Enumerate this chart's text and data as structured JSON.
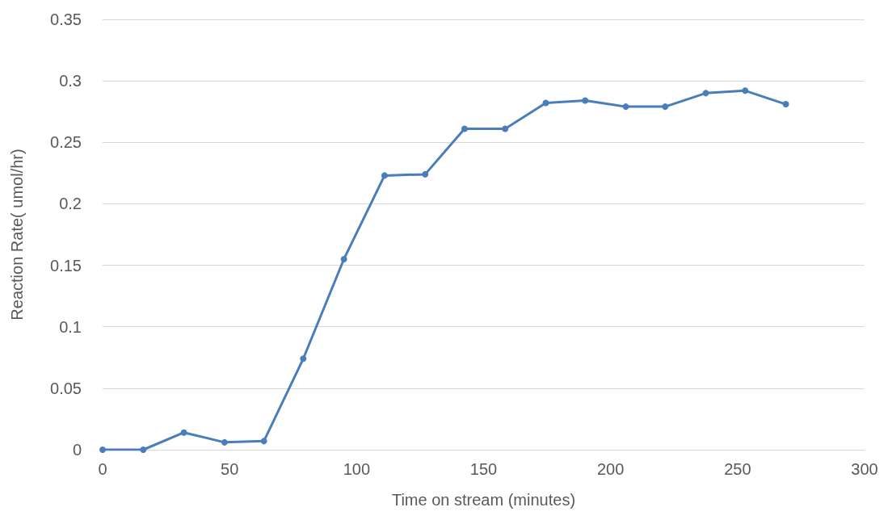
{
  "chart_data": {
    "type": "line",
    "xlabel": "Time on stream (minutes)",
    "ylabel": "Reaction Rate( umol/hr)",
    "x": [
      0,
      16,
      32,
      48,
      63.5,
      79,
      95,
      111,
      127,
      142.5,
      158.5,
      174.5,
      190,
      206,
      221.5,
      237.5,
      253,
      269
    ],
    "series": [
      {
        "color": "#4a7ebb",
        "values": [
          0,
          0,
          0.014,
          0.006,
          0.007,
          0.074,
          0.155,
          0.223,
          0.224,
          0.261,
          0.261,
          0.282,
          0.284,
          0.279,
          0.279,
          0.29,
          0.292,
          0.281
        ]
      }
    ],
    "xlim": [
      0,
      300
    ],
    "xticks": [
      0,
      50,
      100,
      150,
      200,
      250,
      300
    ],
    "ylim": [
      0,
      0.35
    ],
    "yticks": [
      0,
      0.05,
      0.1,
      0.15,
      0.2,
      0.25,
      0.3,
      0.35
    ],
    "grid": "y",
    "marker": "circle",
    "line_style": "solid"
  }
}
